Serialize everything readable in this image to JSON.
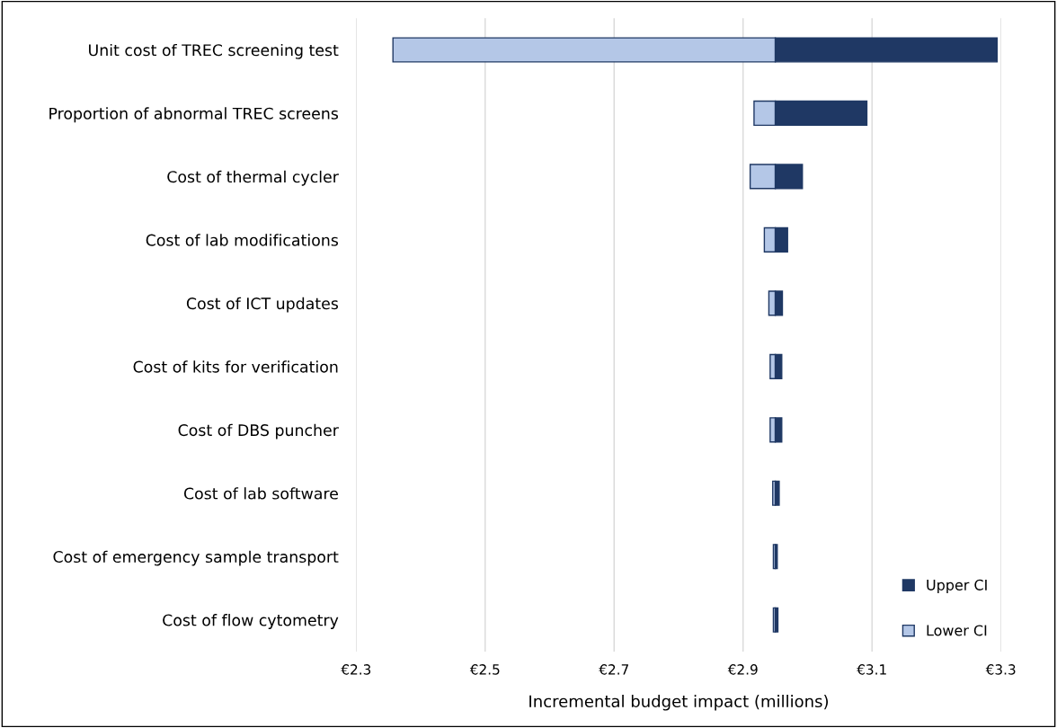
{
  "chart_data": {
    "type": "bar",
    "orientation": "horizontal",
    "xlabel": "Incremental budget impact (millions)",
    "categories": [
      "Unit cost of TREC screening test",
      "Proportion of abnormal TREC screens",
      "Cost of thermal cycler",
      "Cost of lab modifications",
      "Cost of ICT updates",
      "Cost of kits for verification",
      "Cost of DBS puncher",
      "Cost of lab software",
      "Cost of emergency sample transport",
      "Cost of flow cytometry"
    ],
    "series": [
      {
        "name": "Lower CI",
        "color": "#b4c7e7",
        "base": [
          2.357,
          2.917,
          2.911,
          2.933,
          2.94,
          2.942,
          2.942,
          2.946,
          2.947,
          2.947
        ],
        "values": [
          0.593,
          0.033,
          0.039,
          0.017,
          0.01,
          0.008,
          0.008,
          0.004,
          0.003,
          0.003
        ]
      },
      {
        "name": "Upper CI",
        "color": "#1f3864",
        "base": [
          2.95,
          2.95,
          2.95,
          2.95,
          2.95,
          2.95,
          2.95,
          2.95,
          2.95,
          2.95
        ],
        "values": [
          0.344,
          0.142,
          0.042,
          0.019,
          0.011,
          0.01,
          0.01,
          0.006,
          0.003,
          0.004
        ]
      }
    ],
    "xlim": [
      2.3,
      3.3
    ],
    "xticks": [
      {
        "value": 2.3,
        "label": "€2.3"
      },
      {
        "value": 2.5,
        "label": "€2.5"
      },
      {
        "value": 2.7,
        "label": "€2.7"
      },
      {
        "value": 2.9,
        "label": "€2.9"
      },
      {
        "value": 3.1,
        "label": "€3.1"
      },
      {
        "value": 3.3,
        "label": "€3.3"
      }
    ],
    "grid": "x",
    "legend": "bottom right"
  }
}
